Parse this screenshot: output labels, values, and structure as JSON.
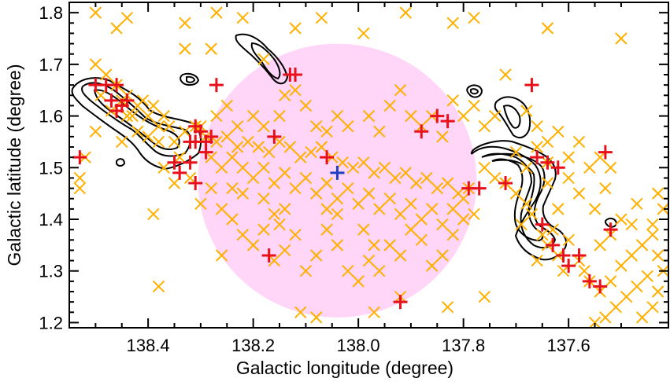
{
  "chart_data": {
    "type": "scatter",
    "title": "",
    "xlabel": "Galactic longitude (degree)",
    "ylabel": "Galactic latitude (degree)",
    "xlim": [
      138.55,
      137.41
    ],
    "ylim": [
      1.19,
      1.82
    ],
    "x_reversed": true,
    "xticks": [
      138.4,
      138.2,
      138.0,
      137.8,
      137.6
    ],
    "xtick_labels": [
      "138.4",
      "138.2",
      "138.0",
      "137.8",
      "137.6"
    ],
    "yticks": [
      1.2,
      1.3,
      1.4,
      1.5,
      1.6,
      1.7,
      1.8
    ],
    "ytick_labels": [
      "1.2",
      "1.3",
      "1.4",
      "1.5",
      "1.6",
      "1.7",
      "1.8"
    ],
    "grid": false,
    "colors": {
      "orange_cross": "#ffb000",
      "red_plus": "#e8101a",
      "blue_plus": "#1f3fc0",
      "circle_fill": "#ffd6f8",
      "contour": "#000000"
    },
    "shaded_circle": {
      "center_l": 138.04,
      "center_b": 1.475,
      "radius_deg": 0.265
    },
    "blue_plus_point": {
      "l": 138.04,
      "b": 1.49
    },
    "series": [
      {
        "marker": "x",
        "color": "#ffb000",
        "points": [
          [
            138.5,
            1.8
          ],
          [
            138.44,
            1.79
          ],
          [
            138.46,
            1.77
          ],
          [
            138.27,
            1.8
          ],
          [
            138.22,
            1.79
          ],
          [
            138.28,
            1.73
          ],
          [
            138.33,
            1.78
          ],
          [
            138.12,
            1.77
          ],
          [
            138.07,
            1.79
          ],
          [
            137.91,
            1.8
          ],
          [
            137.82,
            1.78
          ],
          [
            137.78,
            1.79
          ],
          [
            137.64,
            1.77
          ],
          [
            137.5,
            1.75
          ],
          [
            137.99,
            1.76
          ],
          [
            138.18,
            1.71
          ],
          [
            138.33,
            1.73
          ],
          [
            138.5,
            1.7
          ],
          [
            138.48,
            1.68
          ],
          [
            138.46,
            1.66
          ],
          [
            138.44,
            1.64
          ],
          [
            138.42,
            1.62
          ],
          [
            138.4,
            1.6
          ],
          [
            138.38,
            1.58
          ],
          [
            138.45,
            1.63
          ],
          [
            138.47,
            1.61
          ],
          [
            138.41,
            1.63
          ],
          [
            138.43,
            1.6
          ],
          [
            138.39,
            1.62
          ],
          [
            138.37,
            1.6
          ],
          [
            138.36,
            1.58
          ],
          [
            138.38,
            1.55
          ],
          [
            138.4,
            1.56
          ],
          [
            138.35,
            1.55
          ],
          [
            138.42,
            1.57
          ],
          [
            138.33,
            1.57
          ],
          [
            138.31,
            1.58
          ],
          [
            138.34,
            1.52
          ],
          [
            138.5,
            1.57
          ],
          [
            138.52,
            1.52
          ],
          [
            138.53,
            1.48
          ],
          [
            138.53,
            1.46
          ],
          [
            138.45,
            1.55
          ],
          [
            138.37,
            1.5
          ],
          [
            138.35,
            1.47
          ],
          [
            138.39,
            1.41
          ],
          [
            138.44,
            1.6
          ],
          [
            138.49,
            1.64
          ],
          [
            138.3,
            1.58
          ],
          [
            138.29,
            1.56
          ],
          [
            138.27,
            1.55
          ],
          [
            138.25,
            1.56
          ],
          [
            138.23,
            1.54
          ],
          [
            138.21,
            1.55
          ],
          [
            138.19,
            1.54
          ],
          [
            138.17,
            1.53
          ],
          [
            138.15,
            1.55
          ],
          [
            138.13,
            1.54
          ],
          [
            138.11,
            1.52
          ],
          [
            138.09,
            1.53
          ],
          [
            138.07,
            1.54
          ],
          [
            138.05,
            1.52
          ],
          [
            138.03,
            1.51
          ],
          [
            138.01,
            1.5
          ],
          [
            137.99,
            1.51
          ],
          [
            137.97,
            1.49
          ],
          [
            137.95,
            1.5
          ],
          [
            137.93,
            1.48
          ],
          [
            137.91,
            1.49
          ],
          [
            137.89,
            1.47
          ],
          [
            137.87,
            1.48
          ],
          [
            137.85,
            1.46
          ],
          [
            137.83,
            1.47
          ],
          [
            137.81,
            1.45
          ],
          [
            137.79,
            1.46
          ],
          [
            138.28,
            1.52
          ],
          [
            138.26,
            1.5
          ],
          [
            138.24,
            1.52
          ],
          [
            138.22,
            1.5
          ],
          [
            138.2,
            1.48
          ],
          [
            138.18,
            1.5
          ],
          [
            138.16,
            1.47
          ],
          [
            138.14,
            1.49
          ],
          [
            138.12,
            1.46
          ],
          [
            138.1,
            1.48
          ],
          [
            138.08,
            1.45
          ],
          [
            138.06,
            1.47
          ],
          [
            138.04,
            1.44
          ],
          [
            138.02,
            1.46
          ],
          [
            138,
            1.43
          ],
          [
            137.98,
            1.45
          ],
          [
            137.96,
            1.42
          ],
          [
            137.94,
            1.44
          ],
          [
            137.92,
            1.41
          ],
          [
            137.9,
            1.43
          ],
          [
            137.88,
            1.4
          ],
          [
            137.86,
            1.42
          ],
          [
            137.84,
            1.39
          ],
          [
            138.27,
            1.6
          ],
          [
            138.25,
            1.62
          ],
          [
            138.23,
            1.58
          ],
          [
            138.2,
            1.6
          ],
          [
            138.18,
            1.58
          ],
          [
            138.14,
            1.64
          ],
          [
            138.12,
            1.65
          ],
          [
            138.15,
            1.6
          ],
          [
            138.1,
            1.62
          ],
          [
            138.08,
            1.58
          ],
          [
            138.06,
            1.57
          ],
          [
            138.04,
            1.6
          ],
          [
            138.02,
            1.58
          ],
          [
            137.98,
            1.6
          ],
          [
            137.96,
            1.57
          ],
          [
            137.94,
            1.62
          ],
          [
            137.92,
            1.65
          ],
          [
            137.9,
            1.6
          ],
          [
            137.88,
            1.58
          ],
          [
            137.86,
            1.6
          ],
          [
            137.84,
            1.56
          ],
          [
            137.82,
            1.63
          ],
          [
            137.8,
            1.6
          ],
          [
            137.78,
            1.62
          ],
          [
            137.76,
            1.58
          ],
          [
            137.74,
            1.6
          ],
          [
            137.72,
            1.68
          ],
          [
            137.68,
            1.61
          ],
          [
            137.66,
            1.58
          ],
          [
            137.64,
            1.55
          ],
          [
            137.62,
            1.57
          ],
          [
            137.6,
            1.52
          ],
          [
            137.58,
            1.55
          ],
          [
            137.56,
            1.5
          ],
          [
            137.54,
            1.52
          ],
          [
            137.52,
            1.5
          ],
          [
            138.26,
            1.42
          ],
          [
            138.24,
            1.4
          ],
          [
            138.22,
            1.37
          ],
          [
            138.2,
            1.35
          ],
          [
            138.18,
            1.38
          ],
          [
            138.16,
            1.32
          ],
          [
            138.14,
            1.34
          ],
          [
            138.12,
            1.37
          ],
          [
            138.1,
            1.3
          ],
          [
            138.08,
            1.33
          ],
          [
            138.06,
            1.38
          ],
          [
            138.04,
            1.35
          ],
          [
            138.02,
            1.3
          ],
          [
            138,
            1.28
          ],
          [
            137.98,
            1.32
          ],
          [
            137.96,
            1.3
          ],
          [
            137.94,
            1.35
          ],
          [
            137.92,
            1.33
          ],
          [
            137.9,
            1.38
          ],
          [
            137.88,
            1.36
          ],
          [
            137.86,
            1.31
          ],
          [
            137.84,
            1.33
          ],
          [
            137.82,
            1.37
          ],
          [
            137.8,
            1.4
          ],
          [
            138.28,
            1.46
          ],
          [
            138.3,
            1.43
          ],
          [
            138.32,
            1.48
          ],
          [
            138.26,
            1.33
          ],
          [
            138.11,
            1.22
          ],
          [
            138.08,
            1.21
          ],
          [
            137.97,
            1.22
          ],
          [
            137.92,
            1.25
          ],
          [
            137.83,
            1.23
          ],
          [
            137.76,
            1.25
          ],
          [
            138.38,
            1.27
          ],
          [
            138.16,
            1.41
          ],
          [
            138.15,
            1.39
          ],
          [
            137.76,
            1.5
          ],
          [
            137.74,
            1.48
          ],
          [
            137.72,
            1.47
          ],
          [
            137.7,
            1.45
          ],
          [
            137.68,
            1.43
          ],
          [
            137.67,
            1.41
          ],
          [
            137.69,
            1.39
          ],
          [
            137.65,
            1.37
          ],
          [
            137.63,
            1.38
          ],
          [
            137.64,
            1.35
          ],
          [
            137.62,
            1.33
          ],
          [
            137.66,
            1.32
          ],
          [
            137.61,
            1.3
          ],
          [
            137.6,
            1.36
          ],
          [
            137.58,
            1.32
          ],
          [
            137.57,
            1.3
          ],
          [
            137.56,
            1.28
          ],
          [
            137.54,
            1.26
          ],
          [
            137.52,
            1.28
          ],
          [
            137.5,
            1.31
          ],
          [
            137.48,
            1.33
          ],
          [
            137.46,
            1.35
          ],
          [
            137.44,
            1.37
          ],
          [
            137.43,
            1.33
          ],
          [
            137.45,
            1.29
          ],
          [
            137.47,
            1.27
          ],
          [
            137.49,
            1.25
          ],
          [
            137.51,
            1.23
          ],
          [
            137.53,
            1.21
          ],
          [
            137.55,
            1.2
          ],
          [
            137.42,
            1.3
          ],
          [
            137.43,
            1.26
          ],
          [
            137.44,
            1.23
          ],
          [
            137.46,
            1.21
          ],
          [
            137.48,
            1.39
          ],
          [
            137.5,
            1.4
          ],
          [
            137.52,
            1.37
          ],
          [
            137.54,
            1.35
          ],
          [
            137.42,
            1.42
          ],
          [
            137.43,
            1.45
          ],
          [
            137.44,
            1.39
          ],
          [
            137.47,
            1.43
          ],
          [
            137.53,
            1.46
          ],
          [
            137.55,
            1.42
          ],
          [
            137.58,
            1.45
          ],
          [
            137.62,
            1.42
          ],
          [
            137.64,
            1.47
          ],
          [
            137.68,
            1.5
          ],
          [
            137.7,
            1.53
          ],
          [
            137.66,
            1.54
          ],
          [
            137.64,
            1.51
          ],
          [
            137.6,
            1.48
          ],
          [
            138.06,
            1.42
          ],
          [
            138.04,
            1.41
          ],
          [
            137.99,
            1.38
          ],
          [
            137.97,
            1.35
          ],
          [
            138.14,
            1.42
          ],
          [
            138.18,
            1.44
          ],
          [
            138.22,
            1.45
          ],
          [
            138.24,
            1.46
          ],
          [
            137.82,
            1.42
          ],
          [
            137.8,
            1.44
          ],
          [
            137.78,
            1.41
          ]
        ]
      },
      {
        "marker": "+",
        "color": "#e8101a",
        "points": [
          [
            138.5,
            1.66
          ],
          [
            138.48,
            1.66
          ],
          [
            138.46,
            1.66
          ],
          [
            138.47,
            1.63
          ],
          [
            138.45,
            1.62
          ],
          [
            138.44,
            1.63
          ],
          [
            138.46,
            1.61
          ],
          [
            138.53,
            1.52
          ],
          [
            138.3,
            1.57
          ],
          [
            138.31,
            1.55
          ],
          [
            138.29,
            1.55
          ],
          [
            138.32,
            1.55
          ],
          [
            138.28,
            1.56
          ],
          [
            138.31,
            1.58
          ],
          [
            138.29,
            1.53
          ],
          [
            138.35,
            1.51
          ],
          [
            138.34,
            1.49
          ],
          [
            138.32,
            1.51
          ],
          [
            138.31,
            1.47
          ],
          [
            138.27,
            1.66
          ],
          [
            138.12,
            1.68
          ],
          [
            138.13,
            1.68
          ],
          [
            138.16,
            1.56
          ],
          [
            138.06,
            1.52
          ],
          [
            137.88,
            1.57
          ],
          [
            137.85,
            1.6
          ],
          [
            137.83,
            1.59
          ],
          [
            137.79,
            1.46
          ],
          [
            137.77,
            1.46
          ],
          [
            137.72,
            1.47
          ],
          [
            137.67,
            1.66
          ],
          [
            137.66,
            1.52
          ],
          [
            137.64,
            1.51
          ],
          [
            137.62,
            1.5
          ],
          [
            137.65,
            1.39
          ],
          [
            137.63,
            1.35
          ],
          [
            137.61,
            1.33
          ],
          [
            137.58,
            1.33
          ],
          [
            137.6,
            1.31
          ],
          [
            137.56,
            1.28
          ],
          [
            137.54,
            1.27
          ],
          [
            137.53,
            1.53
          ],
          [
            137.52,
            1.38
          ],
          [
            138.17,
            1.33
          ],
          [
            137.92,
            1.24
          ]
        ]
      }
    ]
  }
}
